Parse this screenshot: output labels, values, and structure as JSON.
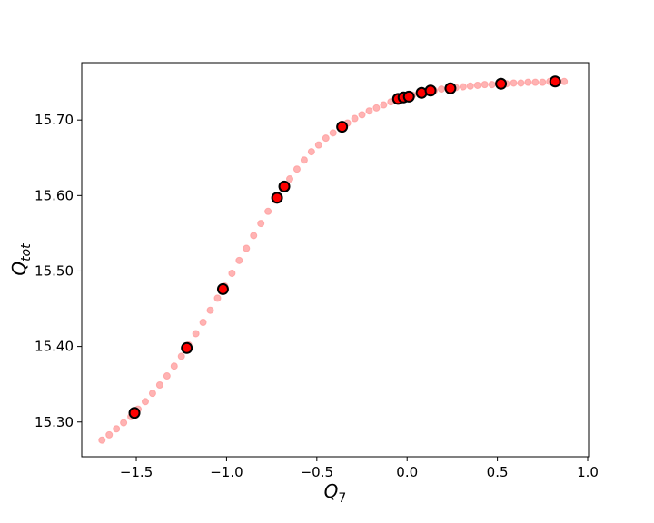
{
  "chart_data": {
    "type": "scatter",
    "xlabel": {
      "text": "Q",
      "subscript": "7"
    },
    "ylabel": {
      "text": "Q",
      "subscript": "tot"
    },
    "xlim": [
      -1.802,
      1.005
    ],
    "ylim": [
      15.254,
      15.776
    ],
    "xticks": [
      {
        "value": -1.5,
        "label": "−1.5"
      },
      {
        "value": -1.0,
        "label": "−1.0"
      },
      {
        "value": -0.5,
        "label": "−0.5"
      },
      {
        "value": 0.0,
        "label": "0.0"
      },
      0.5,
      {
        "value": 1.0,
        "label": "1.0"
      }
    ],
    "yticks": [
      {
        "value": 15.3,
        "label": "15.30"
      },
      {
        "value": 15.4,
        "label": "15.40"
      },
      {
        "value": 15.5,
        "label": "15.50"
      },
      {
        "value": 15.6,
        "label": "15.60"
      },
      {
        "value": 15.7,
        "label": "15.70"
      }
    ],
    "grid": false,
    "series": [
      {
        "color": "#ff9999",
        "opacity": 0.75,
        "edgecolor": "#ff9999",
        "size": 3.5,
        "x": [
          -1.69,
          -1.65,
          -1.61,
          -1.57,
          -1.53,
          -1.49,
          -1.45,
          -1.41,
          -1.37,
          -1.33,
          -1.29,
          -1.25,
          -1.21,
          -1.17,
          -1.13,
          -1.09,
          -1.05,
          -1.01,
          -0.97,
          -0.93,
          -0.89,
          -0.85,
          -0.81,
          -0.77,
          -0.73,
          -0.69,
          -0.65,
          -0.61,
          -0.57,
          -0.53,
          -0.49,
          -0.45,
          -0.41,
          -0.37,
          -0.33,
          -0.29,
          -0.25,
          -0.21,
          -0.17,
          -0.13,
          -0.09,
          -0.05,
          -0.01,
          0.03,
          0.07,
          0.11,
          0.15,
          0.19,
          0.23,
          0.27,
          0.31,
          0.35,
          0.39,
          0.43,
          0.47,
          0.51,
          0.55,
          0.59,
          0.63,
          0.67,
          0.71,
          0.75,
          0.79,
          0.83,
          0.87
        ],
        "values": [
          15.276,
          15.283,
          15.291,
          15.299,
          15.307,
          15.317,
          15.327,
          15.338,
          15.349,
          15.361,
          15.374,
          15.387,
          15.402,
          15.417,
          15.432,
          15.448,
          15.464,
          15.48,
          15.497,
          15.514,
          15.53,
          15.547,
          15.563,
          15.579,
          15.594,
          15.609,
          15.622,
          15.635,
          15.647,
          15.658,
          15.667,
          15.676,
          15.683,
          15.69,
          15.696,
          15.702,
          15.707,
          15.712,
          15.716,
          15.72,
          15.724,
          15.727,
          15.73,
          15.733,
          15.735,
          15.737,
          15.739,
          15.741,
          15.742,
          15.743,
          15.744,
          15.745,
          15.746,
          15.747,
          15.747,
          15.748,
          15.748,
          15.749,
          15.749,
          15.75,
          15.75,
          15.75,
          15.751,
          15.751,
          15.751
        ]
      },
      {
        "color": "#ff0000",
        "opacity": 1,
        "edgecolor": "#000000",
        "size": 5.5,
        "x": [
          -1.51,
          -1.22,
          -1.02,
          -0.72,
          -0.68,
          -0.36,
          -0.05,
          -0.02,
          0.01,
          0.08,
          0.13,
          0.24,
          0.52,
          0.82
        ],
        "values": [
          15.312,
          15.398,
          15.476,
          15.597,
          15.612,
          15.691,
          15.728,
          15.73,
          15.731,
          15.736,
          15.739,
          15.742,
          15.748,
          15.751
        ]
      }
    ]
  }
}
